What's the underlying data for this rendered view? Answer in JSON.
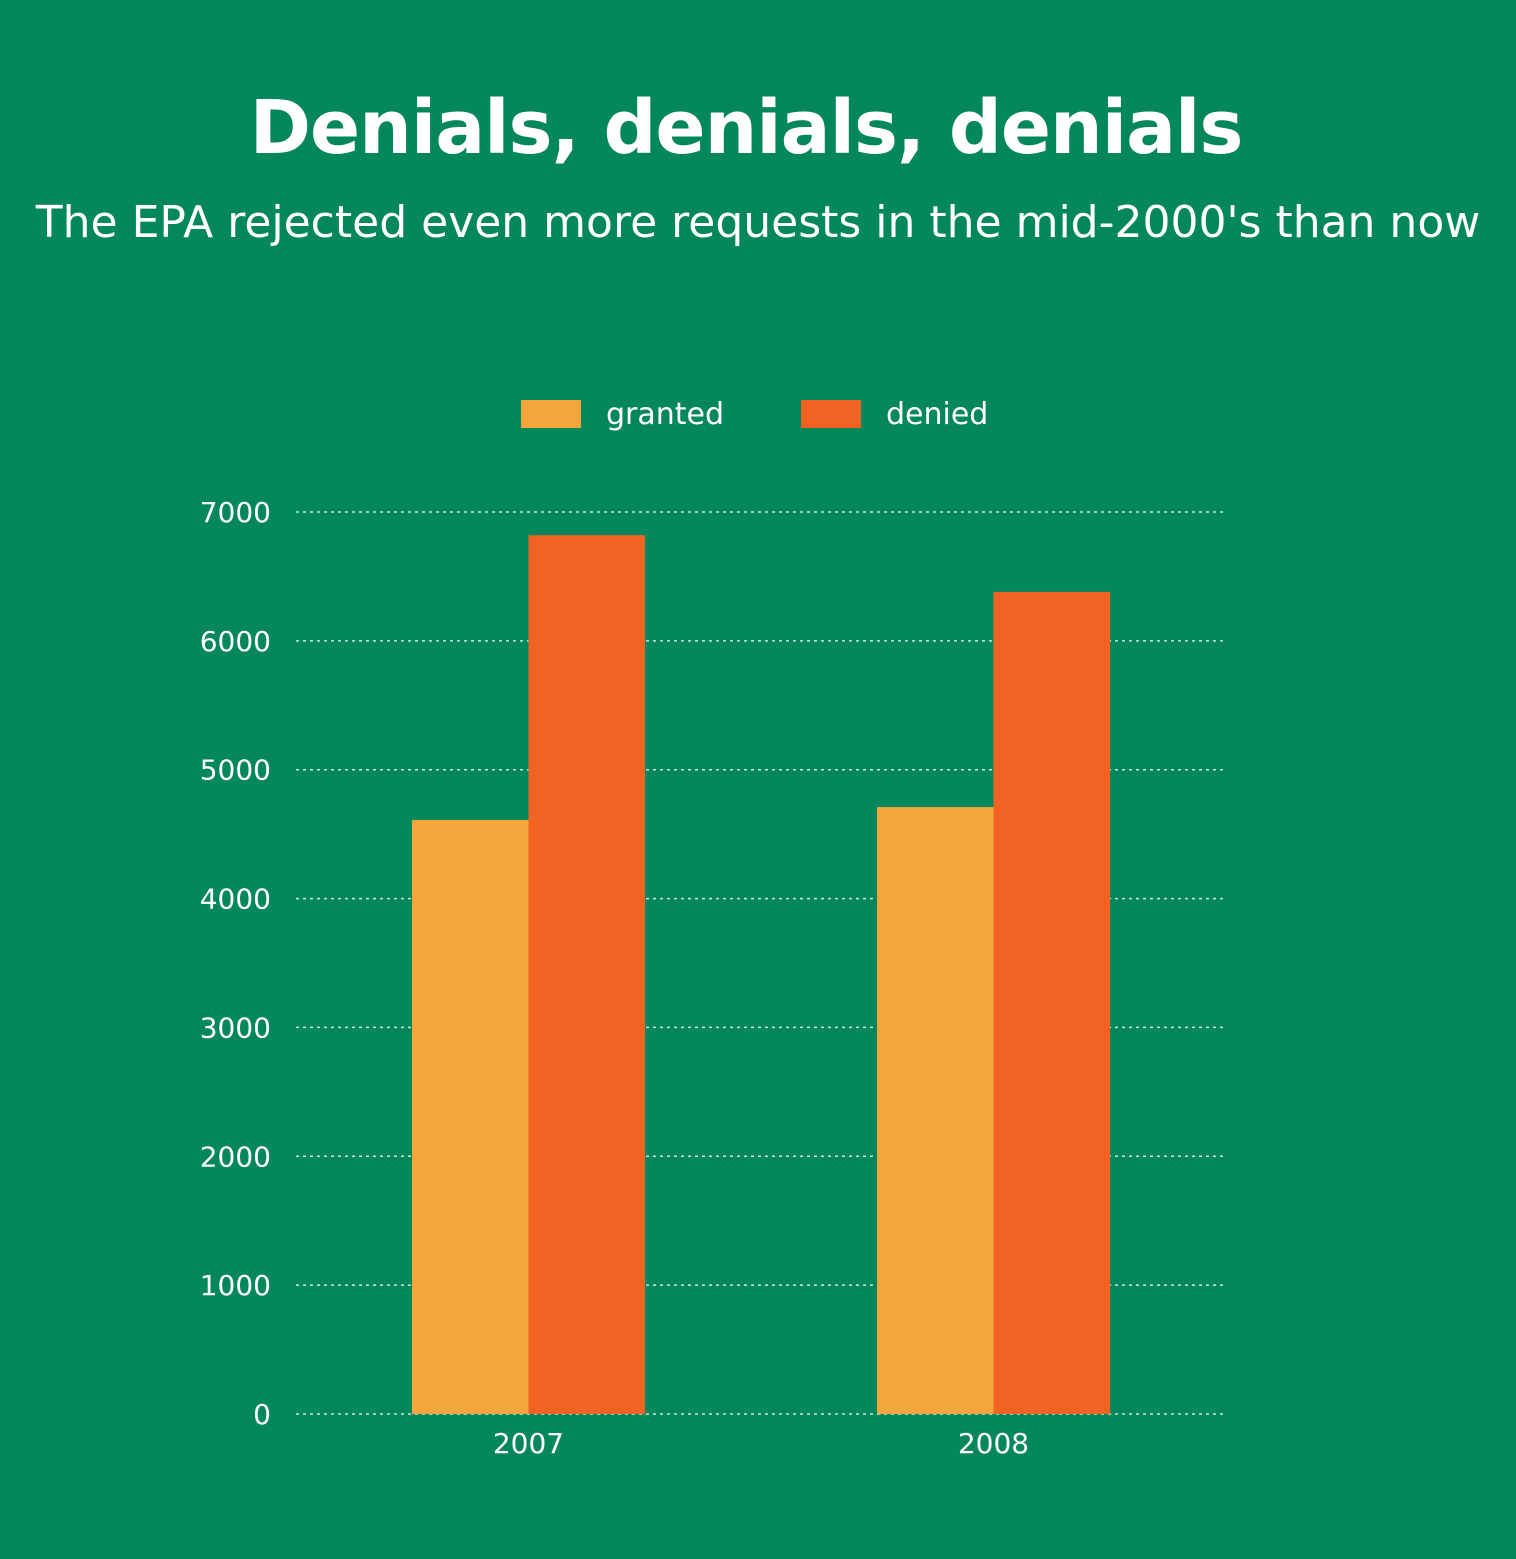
{
  "colors": {
    "background": "#04875b",
    "granted": "#f4a63c",
    "denied": "#f26323",
    "grid": "#cfe6dc",
    "text": "#ffffff"
  },
  "chart_data": {
    "type": "bar",
    "title": "Denials, denials, denials",
    "subtitle": "The EPA rejected even more requests in the mid-2000's than now",
    "categories": [
      "2007",
      "2008"
    ],
    "series": [
      {
        "name": "granted",
        "values": [
          4610,
          4710
        ]
      },
      {
        "name": "denied",
        "values": [
          6820,
          6380
        ]
      }
    ],
    "ylim": [
      0,
      7000
    ],
    "yticks": [
      0,
      1000,
      2000,
      3000,
      4000,
      5000,
      6000,
      7000
    ],
    "grid": true,
    "legend_position": "top-center"
  }
}
